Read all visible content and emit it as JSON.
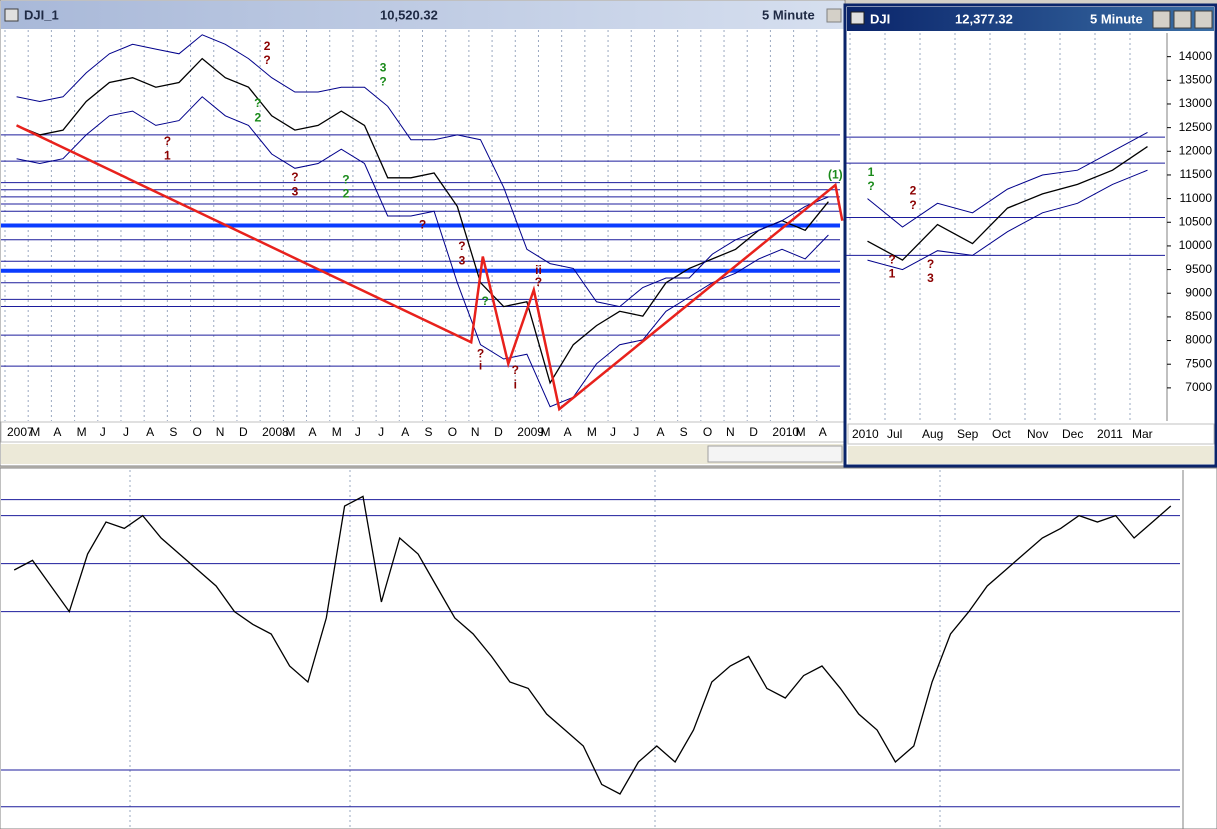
{
  "windows": [
    {
      "title": "DJI_1",
      "price": "10,520.32",
      "interval": "5 Minute"
    },
    {
      "title": "DJI",
      "price": "12,377.32",
      "interval": "5 Minute"
    }
  ],
  "chart_data": [
    {
      "type": "line",
      "categories": [
        "2007",
        "M",
        "A",
        "M",
        "J",
        "J",
        "A",
        "S",
        "O",
        "N",
        "D",
        "2008",
        "M",
        "A",
        "M",
        "J",
        "J",
        "A",
        "S",
        "O",
        "N",
        "D",
        "2009",
        "M",
        "A",
        "M",
        "J",
        "J",
        "A",
        "S",
        "O",
        "N",
        "D",
        "2010",
        "M",
        "A"
      ],
      "ylim": [
        6300,
        14500
      ],
      "series": [
        {
          "color": "#000000",
          "values": [
            12500,
            12300,
            12400,
            13000,
            13400,
            13500,
            13300,
            13400,
            13900,
            13500,
            13300,
            12700,
            12400,
            12500,
            12800,
            12500,
            11400,
            11400,
            11500,
            10800,
            9200,
            8700,
            8800,
            7100,
            7900,
            8300,
            8600,
            8500,
            9200,
            9500,
            9700,
            9900,
            10300,
            10500,
            10300,
            10900
          ]
        },
        {
          "color": "#00008b",
          "values": [
            13100,
            13000,
            13100,
            13600,
            14000,
            14200,
            14100,
            14000,
            14400,
            14200,
            13900,
            13500,
            13200,
            13200,
            13300,
            13300,
            12900,
            12200,
            12200,
            12300,
            12200,
            11200,
            9900,
            9600,
            9500,
            8800,
            8700,
            9100,
            9300,
            9300,
            9800,
            10100,
            10300,
            10500,
            10800,
            11000
          ]
        },
        {
          "color": "#00008b",
          "values": [
            11800,
            11700,
            11800,
            12300,
            12700,
            12800,
            12500,
            12600,
            13100,
            12700,
            12500,
            11900,
            11600,
            11700,
            12000,
            11700,
            10600,
            10600,
            10700,
            9200,
            7900,
            7600,
            7700,
            6600,
            6800,
            7500,
            7900,
            8000,
            8600,
            8900,
            9200,
            9400,
            9700,
            9900,
            9700,
            10200
          ]
        }
      ],
      "zigzag": {
        "color": "#e8211c",
        "x": [
          0,
          19.6,
          20.1,
          21.2,
          22.3,
          23.4,
          35.3,
          35.6
        ],
        "values": [
          12500,
          7950,
          9750,
          7500,
          9050,
          6550,
          11250,
          10500
        ]
      },
      "levels": [
        12300,
        11750,
        11300,
        11150,
        11000,
        10850,
        10700,
        10100,
        9650,
        9200,
        8850,
        8700,
        8100,
        7450
      ],
      "thick_levels": [
        10400,
        9450
      ],
      "annotations": [
        {
          "text": "?",
          "x": 6.5,
          "y": 12150,
          "color": "#8b0000"
        },
        {
          "text": "1",
          "x": 6.5,
          "y": 11850,
          "color": "#8b0000"
        },
        {
          "text": "?",
          "x": 10.4,
          "y": 12950,
          "color": "#1a8a1a"
        },
        {
          "text": "2",
          "x": 10.4,
          "y": 12650,
          "color": "#1a8a1a"
        },
        {
          "text": "2",
          "x": 10.8,
          "y": 14150,
          "color": "#8b0000"
        },
        {
          "text": "?",
          "x": 10.8,
          "y": 13850,
          "color": "#8b0000"
        },
        {
          "text": "?",
          "x": 12.0,
          "y": 11400,
          "color": "#8b0000"
        },
        {
          "text": "3",
          "x": 12.0,
          "y": 11100,
          "color": "#8b0000"
        },
        {
          "text": "?",
          "x": 14.2,
          "y": 11350,
          "color": "#1a8a1a"
        },
        {
          "text": "2",
          "x": 14.2,
          "y": 11050,
          "color": "#1a8a1a"
        },
        {
          "text": "3",
          "x": 15.8,
          "y": 13700,
          "color": "#1a8a1a"
        },
        {
          "text": "?",
          "x": 15.8,
          "y": 13400,
          "color": "#1a8a1a"
        },
        {
          "text": "?",
          "x": 17.5,
          "y": 10400,
          "color": "#8b0000"
        },
        {
          "text": "?",
          "x": 19.2,
          "y": 9950,
          "color": "#8b0000"
        },
        {
          "text": "3",
          "x": 19.2,
          "y": 9650,
          "color": "#8b0000"
        },
        {
          "text": "?",
          "x": 20.2,
          "y": 8800,
          "color": "#1a8a1a"
        },
        {
          "text": "?",
          "x": 20.0,
          "y": 7700,
          "color": "#8b0000"
        },
        {
          "text": "i",
          "x": 20.0,
          "y": 7450,
          "color": "#8b0000"
        },
        {
          "text": "?",
          "x": 21.5,
          "y": 7350,
          "color": "#8b0000"
        },
        {
          "text": "i",
          "x": 21.5,
          "y": 7050,
          "color": "#8b0000"
        },
        {
          "text": "ii",
          "x": 22.5,
          "y": 9450,
          "color": "#8b0000"
        },
        {
          "text": "?",
          "x": 22.5,
          "y": 9200,
          "color": "#8b0000"
        },
        {
          "text": "(1)",
          "x": 35.3,
          "y": 11450,
          "color": "#1a8a1a"
        }
      ]
    },
    {
      "type": "line",
      "categories": [
        "2010",
        "Jul",
        "Aug",
        "Sep",
        "Oct",
        "Nov",
        "Dec",
        "2011",
        "Mar"
      ],
      "ylim": [
        6300,
        14500
      ],
      "yticks": [
        14000,
        13500,
        13000,
        12500,
        12000,
        11500,
        11000,
        10500,
        10000,
        9500,
        9000,
        8500,
        8000,
        7500,
        7000
      ],
      "series": [
        {
          "color": "#000000",
          "values": [
            10100,
            9700,
            10450,
            10050,
            10800,
            11100,
            11300,
            11600,
            12100
          ]
        },
        {
          "color": "#00008b",
          "values": [
            11000,
            10400,
            10900,
            10700,
            11200,
            11500,
            11600,
            12000,
            12400
          ]
        },
        {
          "color": "#00008b",
          "values": [
            9700,
            9500,
            9900,
            9800,
            10300,
            10700,
            10900,
            11300,
            11600
          ]
        }
      ],
      "levels": [
        12300,
        11750,
        10600,
        9800
      ],
      "annotations": [
        {
          "text": "1",
          "x": 0.1,
          "y": 11550,
          "color": "#1a8a1a"
        },
        {
          "text": "?",
          "x": 0.1,
          "y": 11250,
          "color": "#1a8a1a"
        },
        {
          "text": "?",
          "x": 0.7,
          "y": 9700,
          "color": "#8b0000"
        },
        {
          "text": "1",
          "x": 0.7,
          "y": 9400,
          "color": "#8b0000"
        },
        {
          "text": "2",
          "x": 1.3,
          "y": 11150,
          "color": "#8b0000"
        },
        {
          "text": "?",
          "x": 1.3,
          "y": 10850,
          "color": "#8b0000"
        },
        {
          "text": "?",
          "x": 1.8,
          "y": 9600,
          "color": "#8b0000"
        },
        {
          "text": "3",
          "x": 1.8,
          "y": 9300,
          "color": "#8b0000"
        }
      ]
    },
    {
      "type": "line",
      "ylim": [
        0,
        100
      ],
      "series": [
        {
          "color": "#000000",
          "values": [
            75,
            78,
            70,
            62,
            80,
            90,
            88,
            92,
            85,
            80,
            75,
            70,
            62,
            58,
            55,
            45,
            40,
            60,
            95,
            98,
            65,
            85,
            80,
            70,
            60,
            55,
            48,
            40,
            38,
            30,
            25,
            20,
            8,
            5,
            15,
            20,
            15,
            25,
            40,
            45,
            48,
            38,
            35,
            42,
            45,
            38,
            30,
            25,
            15,
            20,
            40,
            55,
            62,
            70,
            75,
            80,
            85,
            88,
            92,
            90,
            92,
            85,
            90,
            95
          ]
        }
      ],
      "levels": [
        97,
        92,
        77,
        62,
        12.5,
        1
      ]
    }
  ]
}
